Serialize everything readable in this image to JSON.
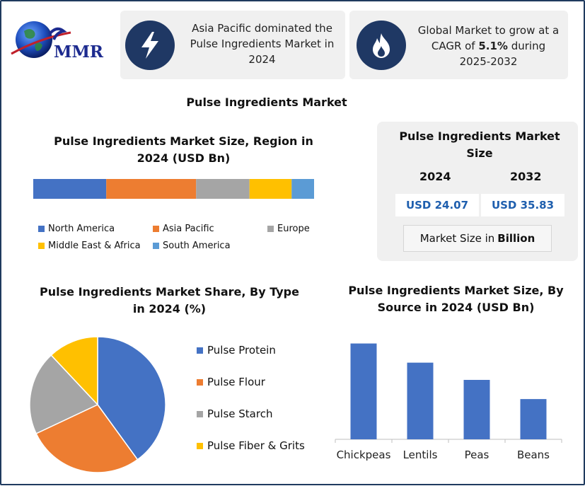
{
  "brand": {
    "logo_text": "MMR"
  },
  "highlights": [
    {
      "icon": "lightning-bolt-icon",
      "text": "Asia Pacific dominated the Pulse Ingredients Market in 2024"
    },
    {
      "icon": "flame-icon",
      "text_before": "Global Market to grow at a CAGR of ",
      "text_bold": "5.1%",
      "text_after": " during 2025-2032"
    }
  ],
  "main_title": "Pulse Ingredients Market",
  "market_size_panel": {
    "title": "Pulse Ingredients Market Size",
    "year_1": "2024",
    "year_2": "2032",
    "value_1": "USD 24.07",
    "value_2": "USD 35.83",
    "unit_prefix": "Market Size in",
    "unit_bold": "Billion"
  },
  "colors": {
    "blue": "#4472c4",
    "orange": "#ed7d31",
    "gray": "#a5a5a5",
    "yellow": "#ffc000",
    "light_blue": "#5b9bd5",
    "navy": "#1f3864"
  },
  "chart_data": [
    {
      "type": "bar",
      "orientation": "horizontal-stacked",
      "title": "Pulse Ingredients Market Size, Region in 2024 (USD Bn)",
      "series": [
        {
          "name": "North America",
          "value": 26,
          "color": "#4472c4"
        },
        {
          "name": "Asia Pacific",
          "value": 32,
          "color": "#ed7d31"
        },
        {
          "name": "Europe",
          "value": 19,
          "color": "#a5a5a5"
        },
        {
          "name": "Middle East & Africa",
          "value": 15,
          "color": "#ffc000"
        },
        {
          "name": "South America",
          "value": 8,
          "color": "#5b9bd5"
        }
      ],
      "legend": "bottom"
    },
    {
      "type": "pie",
      "title": "Pulse Ingredients Market Share, By Type in 2024 (%)",
      "slices": [
        {
          "name": "Pulse Protein",
          "value": 40,
          "color": "#4472c4"
        },
        {
          "name": "Pulse Flour",
          "value": 28,
          "color": "#ed7d31"
        },
        {
          "name": "Pulse Starch",
          "value": 20,
          "color": "#a5a5a5"
        },
        {
          "name": "Pulse Fiber & Grits",
          "value": 12,
          "color": "#ffc000"
        }
      ],
      "legend": "right"
    },
    {
      "type": "bar",
      "title": "Pulse Ingredients Market Size, By Source in 2024 (USD Bn)",
      "categories": [
        "Chickpeas",
        "Lentils",
        "Peas",
        "Beans"
      ],
      "values": [
        10,
        8,
        6.2,
        4.2
      ],
      "ylim": [
        0,
        11
      ],
      "color": "#4472c4",
      "grid": false
    }
  ]
}
